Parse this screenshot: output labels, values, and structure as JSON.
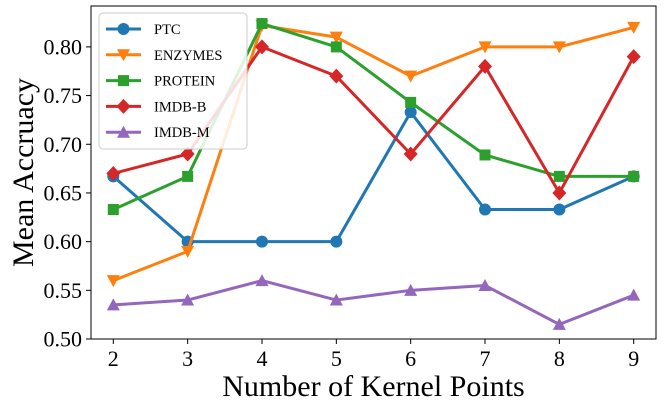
{
  "chart_data": {
    "type": "line",
    "title": "",
    "xlabel": "Number of Kernel Points",
    "ylabel": "Mean Accruacy",
    "x": [
      2,
      3,
      4,
      5,
      6,
      7,
      8,
      9
    ],
    "xlim": [
      1.7,
      9.3
    ],
    "ylim": [
      0.5,
      0.842
    ],
    "yticks": [
      "0.50",
      "0.55",
      "0.60",
      "0.65",
      "0.70",
      "0.75",
      "0.80"
    ],
    "grid": false,
    "legend_position": "top-left",
    "series": [
      {
        "name": "PTC",
        "color": "#1f77b4",
        "marker": "circle",
        "values": [
          0.667,
          0.6,
          0.6,
          0.6,
          0.733,
          0.633,
          0.633,
          0.667
        ]
      },
      {
        "name": "ENZYMES",
        "color": "#ff7f0e",
        "marker": "triangle-down",
        "values": [
          0.56,
          0.59,
          0.822,
          0.81,
          0.77,
          0.8,
          0.8,
          0.82
        ]
      },
      {
        "name": "PROTEIN",
        "color": "#2ca02c",
        "marker": "square",
        "values": [
          0.633,
          0.667,
          0.824,
          0.8,
          0.743,
          0.689,
          0.667,
          0.667
        ]
      },
      {
        "name": "IMDB-B",
        "color": "#d62728",
        "marker": "diamond",
        "values": [
          0.67,
          0.69,
          0.8,
          0.77,
          0.69,
          0.78,
          0.65,
          0.79
        ]
      },
      {
        "name": "IMDB-M",
        "color": "#9467bd",
        "marker": "triangle-up",
        "values": [
          0.535,
          0.54,
          0.56,
          0.54,
          0.55,
          0.555,
          0.515,
          0.545
        ]
      }
    ]
  }
}
